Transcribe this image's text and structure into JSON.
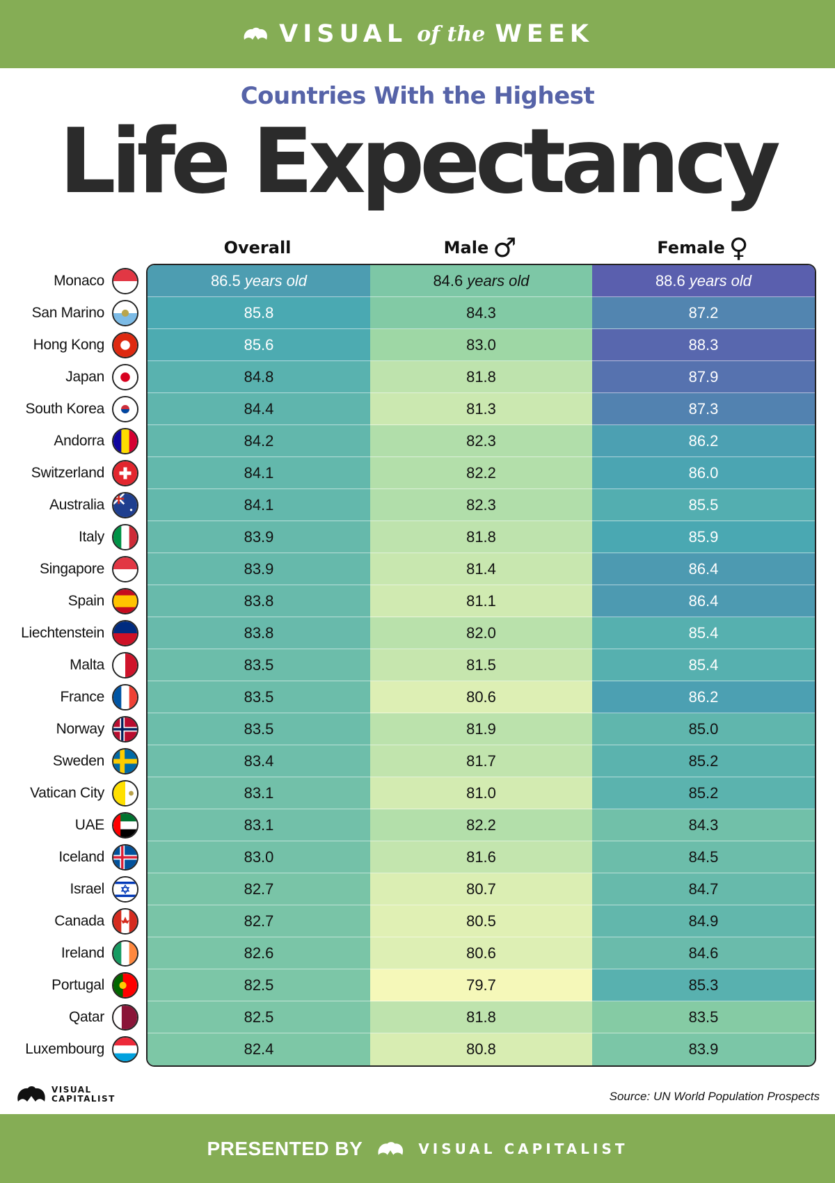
{
  "header": {
    "brand_left": "VISUAL",
    "brand_mid": "of the",
    "brand_right": "WEEK"
  },
  "title": {
    "subtitle": "Countries With the Highest",
    "main": "Life Expectancy"
  },
  "columns": {
    "overall": "Overall",
    "male": "Male",
    "male_symbol": "♂",
    "female": "Female",
    "female_symbol": "♀",
    "unit": "years old"
  },
  "chart_data": {
    "type": "table",
    "title": "Countries With the Highest Life Expectancy",
    "columns": [
      "Overall",
      "Male",
      "Female"
    ],
    "unit": "years old",
    "rows": [
      {
        "country": "Monaco",
        "flag": "monaco-flag",
        "overall": 86.5,
        "male": 84.6,
        "female": 88.6
      },
      {
        "country": "San Marino",
        "flag": "san-marino-flag",
        "overall": 85.8,
        "male": 84.3,
        "female": 87.2
      },
      {
        "country": "Hong Kong",
        "flag": "hong-kong-flag",
        "overall": 85.6,
        "male": 83.0,
        "female": 88.3
      },
      {
        "country": "Japan",
        "flag": "japan-flag",
        "overall": 84.8,
        "male": 81.8,
        "female": 87.9
      },
      {
        "country": "South Korea",
        "flag": "south-korea-flag",
        "overall": 84.4,
        "male": 81.3,
        "female": 87.3
      },
      {
        "country": "Andorra",
        "flag": "andorra-flag",
        "overall": 84.2,
        "male": 82.3,
        "female": 86.2
      },
      {
        "country": "Switzerland",
        "flag": "switzerland-flag",
        "overall": 84.1,
        "male": 82.2,
        "female": 86.0
      },
      {
        "country": "Australia",
        "flag": "australia-flag",
        "overall": 84.1,
        "male": 82.3,
        "female": 85.5
      },
      {
        "country": "Italy",
        "flag": "italy-flag",
        "overall": 83.9,
        "male": 81.8,
        "female": 85.9
      },
      {
        "country": "Singapore",
        "flag": "singapore-flag",
        "overall": 83.9,
        "male": 81.4,
        "female": 86.4
      },
      {
        "country": "Spain",
        "flag": "spain-flag",
        "overall": 83.8,
        "male": 81.1,
        "female": 86.4
      },
      {
        "country": "Liechtenstein",
        "flag": "liechtenstein-flag",
        "overall": 83.8,
        "male": 82.0,
        "female": 85.4
      },
      {
        "country": "Malta",
        "flag": "malta-flag",
        "overall": 83.5,
        "male": 81.5,
        "female": 85.4
      },
      {
        "country": "France",
        "flag": "france-flag",
        "overall": 83.5,
        "male": 80.6,
        "female": 86.2
      },
      {
        "country": "Norway",
        "flag": "norway-flag",
        "overall": 83.5,
        "male": 81.9,
        "female": 85.0
      },
      {
        "country": "Sweden",
        "flag": "sweden-flag",
        "overall": 83.4,
        "male": 81.7,
        "female": 85.2
      },
      {
        "country": "Vatican City",
        "flag": "vatican-city-flag",
        "overall": 83.1,
        "male": 81.0,
        "female": 85.2
      },
      {
        "country": "UAE",
        "flag": "uae-flag",
        "overall": 83.1,
        "male": 82.2,
        "female": 84.3
      },
      {
        "country": "Iceland",
        "flag": "iceland-flag",
        "overall": 83.0,
        "male": 81.6,
        "female": 84.5
      },
      {
        "country": "Israel",
        "flag": "israel-flag",
        "overall": 82.7,
        "male": 80.7,
        "female": 84.7
      },
      {
        "country": "Canada",
        "flag": "canada-flag",
        "overall": 82.7,
        "male": 80.5,
        "female": 84.9
      },
      {
        "country": "Ireland",
        "flag": "ireland-flag",
        "overall": 82.6,
        "male": 80.6,
        "female": 84.6
      },
      {
        "country": "Portugal",
        "flag": "portugal-flag",
        "overall": 82.5,
        "male": 79.7,
        "female": 85.3
      },
      {
        "country": "Qatar",
        "flag": "qatar-flag",
        "overall": 82.5,
        "male": 81.8,
        "female": 83.5
      },
      {
        "country": "Luxembourg",
        "flag": "luxembourg-flag",
        "overall": 82.4,
        "male": 80.8,
        "female": 83.9
      }
    ]
  },
  "colors": {
    "banner": "#85ad55",
    "subtitle": "#5663a8",
    "title": "#2b2b2b",
    "scale_low": "#f5f8b9",
    "scale_mid": "#8fd1a2",
    "scale_teal": "#4aa9b2",
    "scale_high": "#5a5fae"
  },
  "footer": {
    "logo_line1": "VISUAL",
    "logo_line2": "CAPITALIST",
    "source": "Source: UN World Population Prospects",
    "presented_by": "PRESENTED BY",
    "brand": "VISUAL CAPITALIST"
  }
}
